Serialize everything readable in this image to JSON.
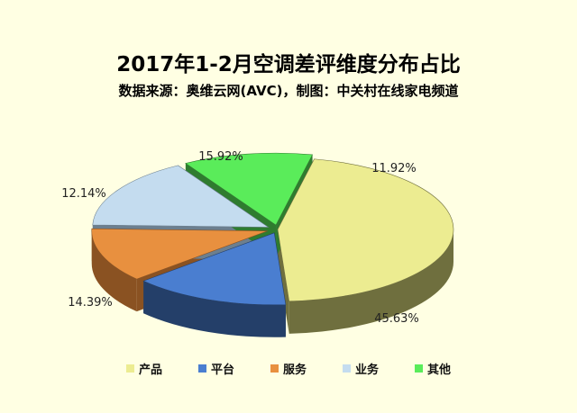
{
  "chart_data": {
    "type": "pie",
    "title": "2017年1-2月空调差评维度分布占比",
    "subtitle": "数据来源：奥维云网(AVC)，制图：中关村在线家电频道",
    "slices": [
      {
        "name": "产品",
        "value": 45.63,
        "label": "45.63%",
        "color": "#ecec91",
        "dark": "#6f6f3e"
      },
      {
        "name": "平台",
        "value": 14.39,
        "label": "14.39%",
        "color": "#4a7ed0",
        "dark": "#243f69"
      },
      {
        "name": "服务",
        "value": 12.14,
        "label": "12.14%",
        "color": "#e8903f",
        "dark": "#8a5222"
      },
      {
        "name": "业务",
        "value": 15.92,
        "label": "15.92%",
        "color": "#c4dcef",
        "dark": "#6c7f8f"
      },
      {
        "name": "其他",
        "value": 11.92,
        "label": "11.92%",
        "color": "#5aec5a",
        "dark": "#2f7c2f"
      }
    ],
    "legend_position": "bottom"
  }
}
